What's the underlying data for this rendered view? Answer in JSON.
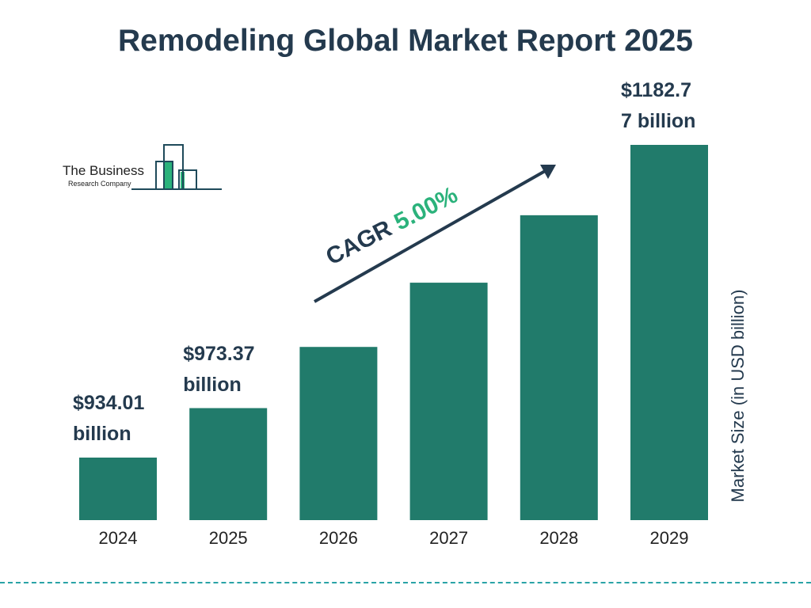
{
  "chart_data": {
    "type": "bar",
    "title": "Remodeling Global Market Report 2025",
    "categories": [
      "2024",
      "2025",
      "2026",
      "2027",
      "2028",
      "2029"
    ],
    "values": [
      934.01,
      973.37,
      1022.04,
      1073.14,
      1126.8,
      1182.77
    ],
    "data_labels": {
      "2024": "$934.01\nbillion",
      "2025": "$973.37\nbillion",
      "2029": "$1182.7\n7 billion"
    },
    "xlabel": "",
    "ylabel": "Market Size (in USD billion)",
    "annotation": {
      "prefix": "CAGR ",
      "value": "5.00%"
    },
    "grid": false,
    "bar_color": "#217b6b",
    "text_color": "#243a4e",
    "accent_color": "#2bb27b"
  },
  "logo": {
    "line1": "The Business",
    "line2": "Research Company"
  }
}
